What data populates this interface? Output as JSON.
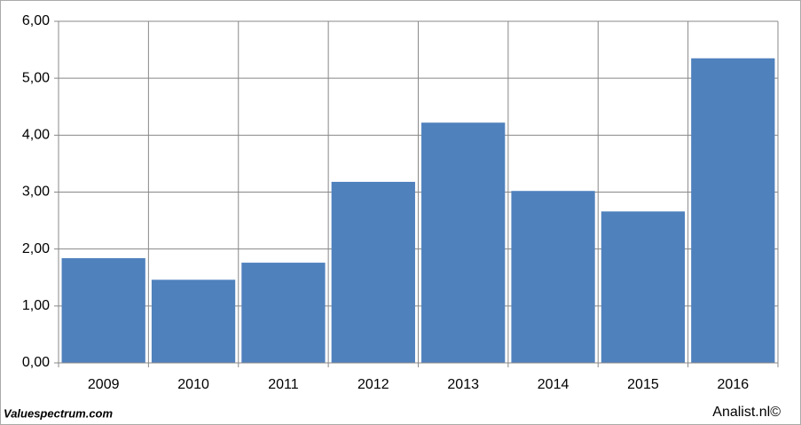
{
  "chart_data": {
    "type": "bar",
    "categories": [
      "2009",
      "2010",
      "2011",
      "2012",
      "2013",
      "2014",
      "2015",
      "2016"
    ],
    "values": [
      1.84,
      1.46,
      1.76,
      3.18,
      4.22,
      3.02,
      2.66,
      5.35
    ],
    "color": "#4f81bd",
    "ylim": [
      0,
      6
    ],
    "yticks": [
      {
        "value": 0,
        "label": "0,00"
      },
      {
        "value": 1,
        "label": "1,00"
      },
      {
        "value": 2,
        "label": "2,00"
      },
      {
        "value": 3,
        "label": "3,00"
      },
      {
        "value": 4,
        "label": "4,00"
      },
      {
        "value": 5,
        "label": "5,00"
      },
      {
        "value": 6,
        "label": "6,00"
      }
    ],
    "grid": true,
    "source": "Valuespectrum.com",
    "credit": "Analist.nl©"
  }
}
